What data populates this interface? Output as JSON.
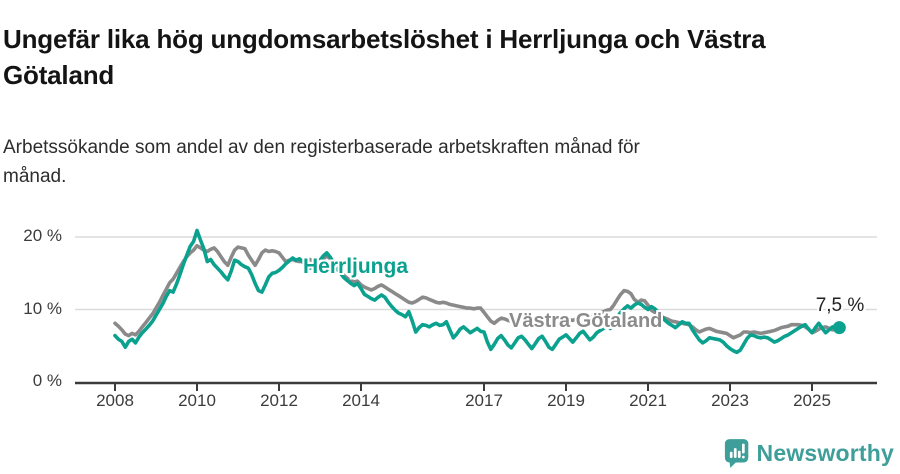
{
  "header": {
    "title": "Ungefär lika hög ungdomsarbetslöshet i Herrljunga och Västra Götaland",
    "subtitle": "Arbetssökande som andel av den registerbaserade arbetskraften månad för månad."
  },
  "series_labels": {
    "herrljunga": "Herrljunga",
    "vastra_gotaland": "Västra Götaland"
  },
  "annotation": {
    "end_value_label": "7,5 %"
  },
  "footer": {
    "brand": "Newsworthy",
    "brand_color": "#3E9E99",
    "icon": "bar-chart-speech-bubble-icon"
  },
  "colors": {
    "herrljunga": "#0aa18e",
    "vastra_gotaland": "#8a8a8a",
    "axis": "#3b3b3b",
    "gridline": "#dbdbdb"
  },
  "chart_data": {
    "type": "line",
    "title": "Ungefär lika hög ungdomsarbetslöshet i Herrljunga och Västra Götaland",
    "subtitle": "Arbetssökande som andel av den registerbaserade arbetskraften månad för månad.",
    "x_start_year": 2008,
    "points_per_year": 12,
    "x_tick_labels": [
      "2008",
      "2010",
      "2012",
      "2014",
      "2017",
      "2019",
      "2021",
      "2023",
      "2025"
    ],
    "x_tick_years": [
      2008,
      2010,
      2012,
      2014,
      2017,
      2019,
      2021,
      2023,
      2025
    ],
    "y_ticks": [
      {
        "value": 0,
        "label": "0 %"
      },
      {
        "value": 10,
        "label": "10 %"
      },
      {
        "value": 20,
        "label": "20 %"
      }
    ],
    "ylim": [
      0,
      22
    ],
    "grid": "horizontal-only",
    "legend_position": "inline-labels",
    "end_annotation": {
      "series": "Herrljunga",
      "label": "7,5 %",
      "value": 7.5
    },
    "series": [
      {
        "name": "Västra Götaland",
        "color": "#8a8a8a",
        "values": [
          8.1,
          7.7,
          7.2,
          6.6,
          6.4,
          6.7,
          6.5,
          7.0,
          7.6,
          8.2,
          8.8,
          9.4,
          10.2,
          11.0,
          11.9,
          12.8,
          13.7,
          14.2,
          15.0,
          15.8,
          16.6,
          17.3,
          17.8,
          18.2,
          18.8,
          18.5,
          18.2,
          18.0,
          18.3,
          18.5,
          18.0,
          17.3,
          16.6,
          16.1,
          17.2,
          18.2,
          18.6,
          18.5,
          18.4,
          17.5,
          16.8,
          16.1,
          16.9,
          17.8,
          18.2,
          18.0,
          18.1,
          18.0,
          17.8,
          17.2,
          16.6,
          16.8,
          16.9,
          16.7,
          16.6,
          16.8,
          17.0,
          16.9,
          16.7,
          16.4,
          16.6,
          17.0,
          17.4,
          17.0,
          16.4,
          15.8,
          15.2,
          14.7,
          14.3,
          14.0,
          13.8,
          13.9,
          13.4,
          13.1,
          12.9,
          12.7,
          12.9,
          13.2,
          13.4,
          13.1,
          12.8,
          12.5,
          12.2,
          11.9,
          11.6,
          11.3,
          11.0,
          10.9,
          11.1,
          11.4,
          11.7,
          11.6,
          11.4,
          11.2,
          11.0,
          10.9,
          11.0,
          10.9,
          10.7,
          10.6,
          10.5,
          10.4,
          10.3,
          10.2,
          10.2,
          10.1,
          10.2,
          10.2,
          9.6,
          9.0,
          8.4,
          8.1,
          8.5,
          8.8,
          8.7,
          8.5,
          8.4,
          8.5,
          8.6,
          8.7,
          8.6,
          8.4,
          8.2,
          8.4,
          8.6,
          8.8,
          8.7,
          8.5,
          8.3,
          8.4,
          8.6,
          8.7,
          8.8,
          8.6,
          8.5,
          8.7,
          8.9,
          9.1,
          9.0,
          8.9,
          9.1,
          9.3,
          9.5,
          9.7,
          9.9,
          10.0,
          10.6,
          11.4,
          12.1,
          12.6,
          12.5,
          12.2,
          11.4,
          11.0,
          11.3,
          11.2,
          10.6,
          9.9,
          9.6,
          9.3,
          9.0,
          8.8,
          8.6,
          8.4,
          8.3,
          8.2,
          8.1,
          8.0,
          7.9,
          7.6,
          7.2,
          6.9,
          7.1,
          7.3,
          7.4,
          7.2,
          7.0,
          6.9,
          6.8,
          6.7,
          6.4,
          6.1,
          6.3,
          6.5,
          6.9,
          6.9,
          6.8,
          6.9,
          6.8,
          6.7,
          6.8,
          6.9,
          7.0,
          7.1,
          7.3,
          7.5,
          7.6,
          7.7,
          7.9,
          7.9,
          7.9,
          7.8,
          7.6,
          7.3,
          6.8,
          7.0,
          7.3,
          7.5,
          7.6,
          7.4,
          7.2,
          7.3,
          7.3
        ]
      },
      {
        "name": "Herrljunga",
        "color": "#0aa18e",
        "values": [
          6.4,
          5.9,
          5.6,
          4.8,
          5.6,
          5.9,
          5.4,
          6.2,
          6.8,
          7.3,
          7.8,
          8.4,
          9.2,
          10.0,
          10.8,
          11.8,
          12.6,
          12.4,
          13.5,
          14.8,
          16.2,
          17.5,
          18.7,
          19.4,
          20.9,
          19.6,
          18.4,
          16.6,
          16.9,
          16.2,
          15.7,
          15.2,
          14.6,
          14.1,
          15.3,
          16.8,
          16.6,
          16.2,
          15.9,
          15.7,
          14.8,
          13.6,
          12.6,
          12.4,
          13.4,
          14.5,
          15.0,
          15.1,
          15.4,
          15.8,
          16.3,
          16.7,
          17.1,
          16.8,
          17.0,
          16.5,
          16.0,
          15.7,
          16.0,
          16.4,
          16.8,
          17.4,
          17.8,
          17.2,
          16.4,
          15.6,
          15.0,
          14.4,
          14.0,
          13.6,
          13.3,
          13.6,
          12.9,
          12.1,
          11.8,
          11.5,
          11.3,
          11.7,
          12.0,
          11.7,
          11.0,
          10.4,
          9.9,
          9.5,
          9.3,
          9.0,
          9.7,
          8.4,
          6.9,
          7.5,
          7.9,
          7.8,
          7.6,
          7.9,
          8.1,
          7.8,
          7.9,
          8.3,
          7.2,
          6.1,
          6.6,
          7.3,
          7.6,
          7.2,
          6.8,
          7.1,
          7.4,
          7.0,
          6.9,
          5.5,
          4.5,
          5.2,
          6.0,
          6.4,
          5.8,
          5.1,
          4.7,
          5.4,
          6.1,
          6.3,
          5.8,
          5.2,
          4.6,
          5.3,
          6.0,
          6.3,
          5.6,
          4.8,
          4.5,
          5.2,
          5.9,
          6.2,
          6.5,
          6.0,
          5.5,
          6.1,
          6.7,
          7.0,
          6.4,
          5.8,
          6.2,
          6.8,
          7.1,
          7.4,
          7.8,
          7.4,
          8.2,
          9.0,
          9.6,
          10.1,
          10.5,
          10.2,
          10.6,
          10.9,
          10.7,
          10.3,
          10.0,
          10.4,
          10.1,
          9.6,
          9.0,
          8.5,
          8.1,
          7.8,
          7.5,
          7.9,
          8.3,
          8.1,
          8.1,
          7.2,
          6.5,
          5.8,
          5.4,
          5.7,
          6.1,
          6.0,
          5.9,
          5.8,
          5.5,
          5.0,
          4.6,
          4.3,
          4.1,
          4.4,
          5.2,
          6.0,
          6.5,
          6.4,
          6.2,
          6.1,
          6.2,
          6.1,
          5.8,
          5.5,
          5.7,
          6.0,
          6.3,
          6.5,
          6.8,
          7.1,
          7.4,
          7.7,
          7.9,
          7.3,
          6.8,
          7.5,
          8.1,
          7.4,
          6.8,
          7.2,
          7.6,
          7.5,
          7.5
        ]
      }
    ]
  }
}
